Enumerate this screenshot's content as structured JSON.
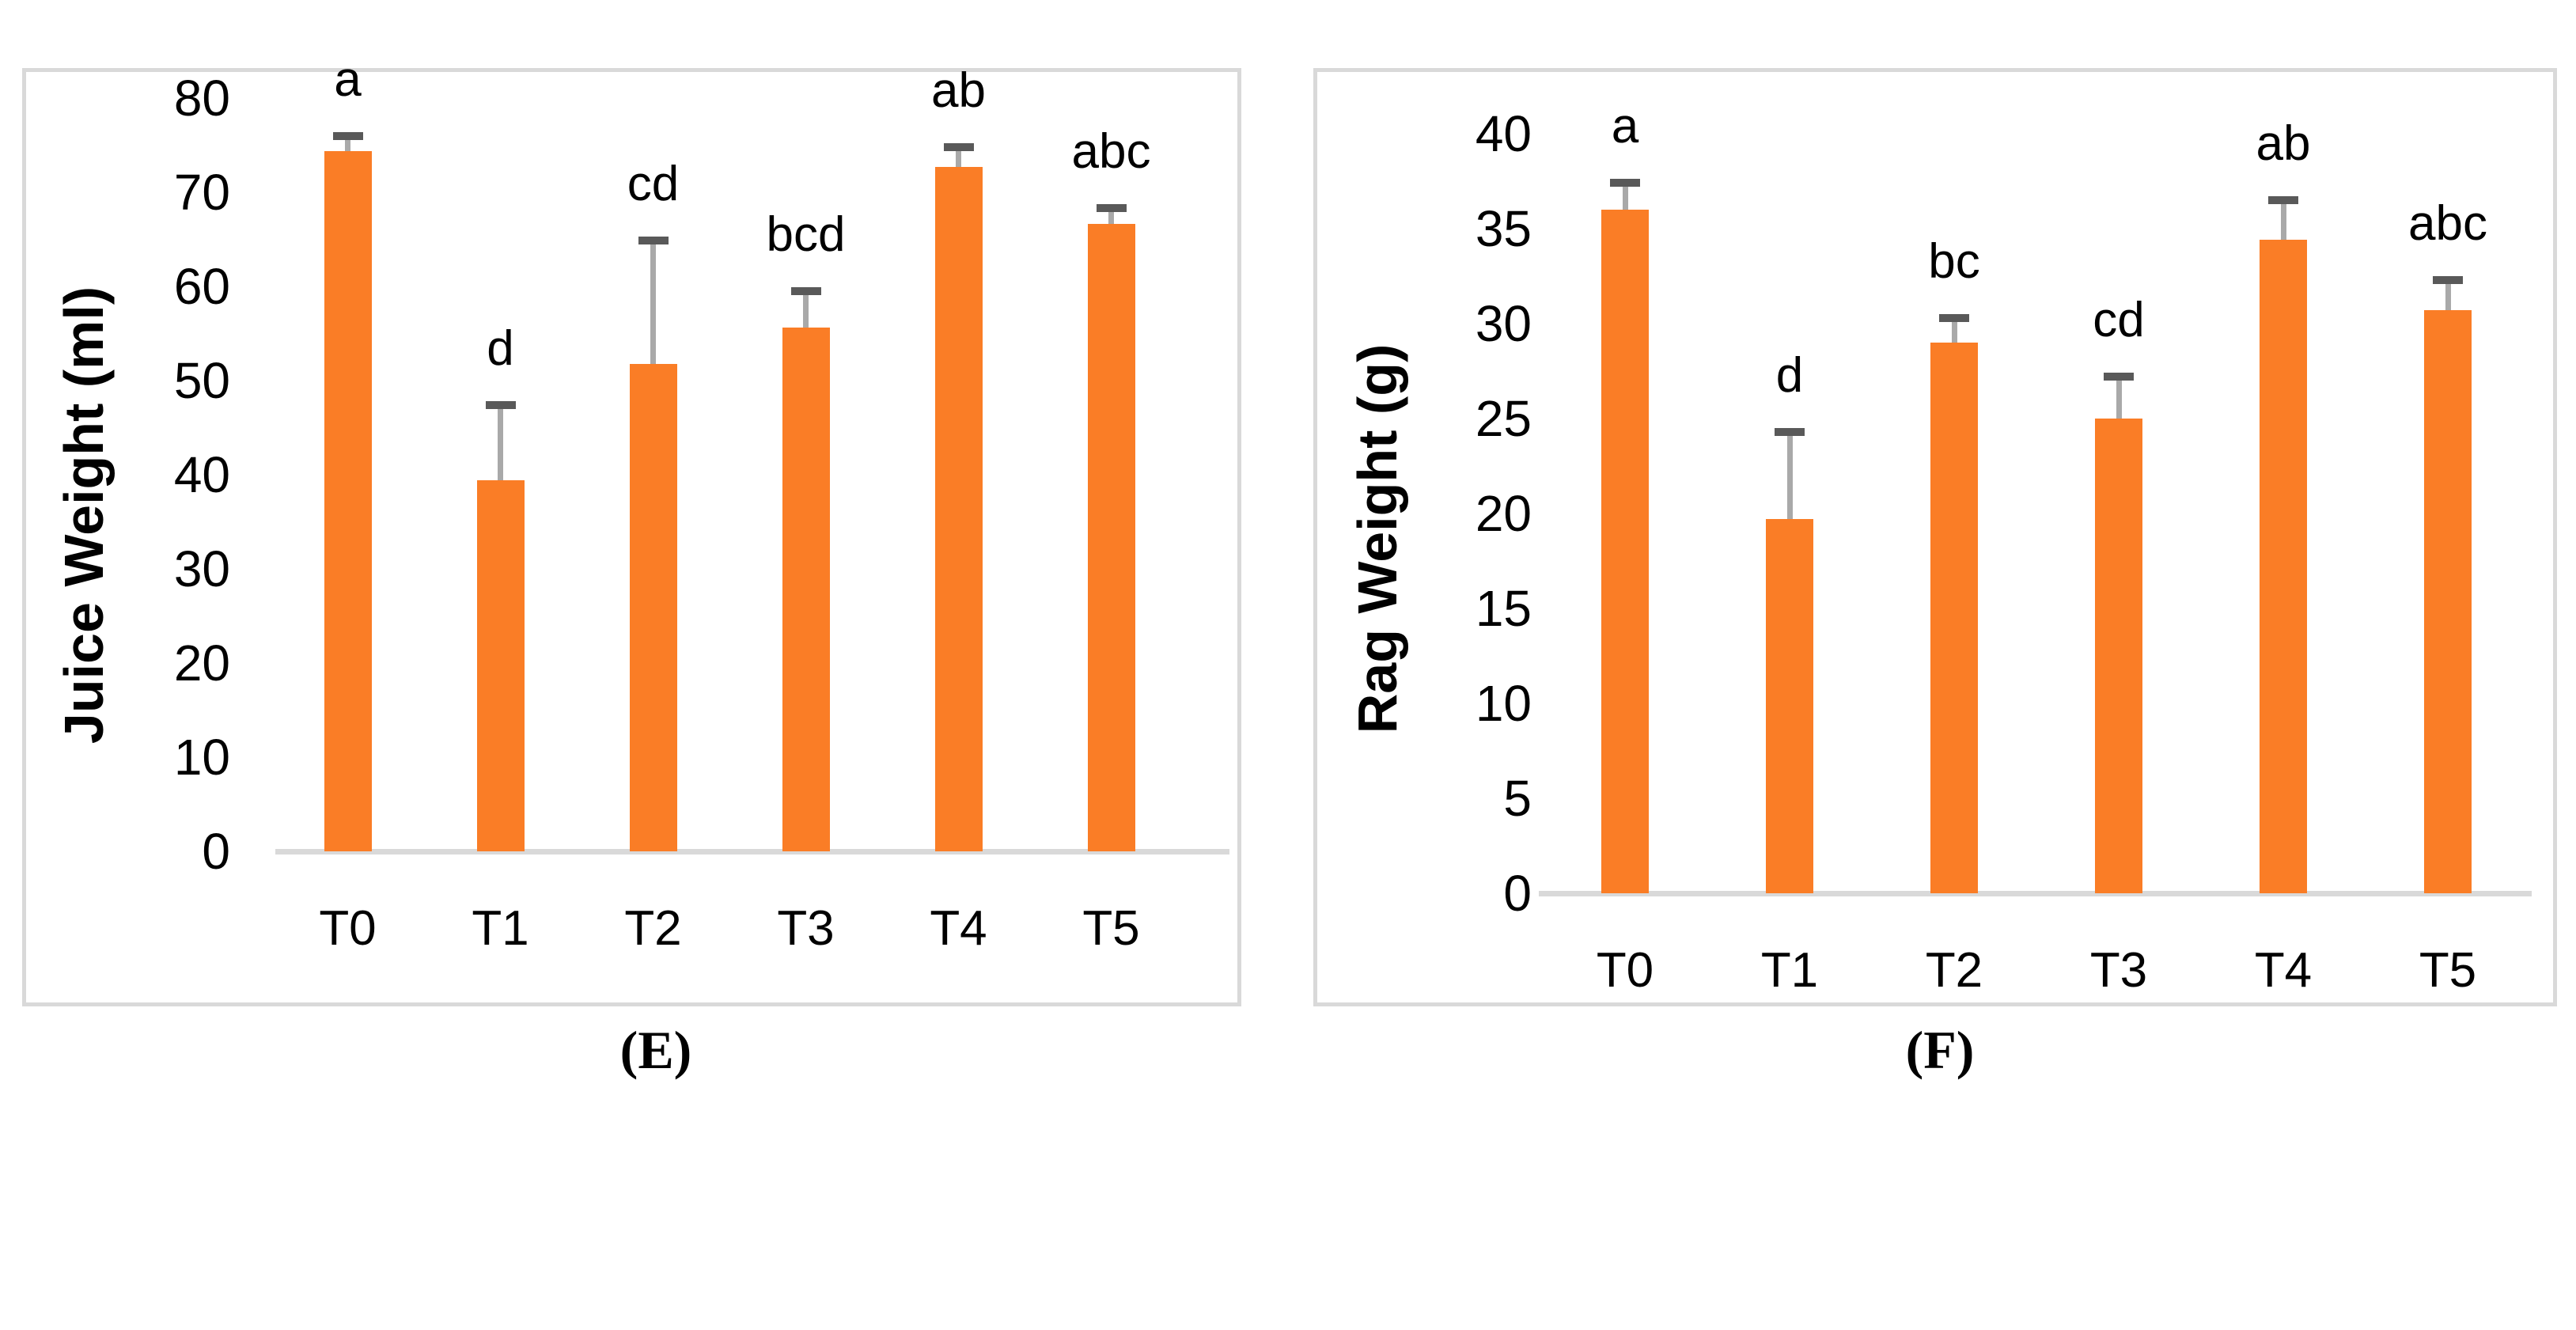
{
  "figure": {
    "caption_e": "(E)",
    "caption_f": "(F)"
  },
  "style": {
    "bar_color": "#FA7D26",
    "whisker_color": "#A9A9A9",
    "error_cap_color": "#595959",
    "axis_line_color": "#D9D9D9",
    "panel_border_color": "#D9D9D9",
    "text_color": "#000000"
  },
  "chart_data": [
    {
      "type": "bar",
      "panel": "E",
      "title": "",
      "xlabel": "",
      "ylabel": "Juice Weight (ml)",
      "categories": [
        "T0",
        "T1",
        "T2",
        "T3",
        "T4",
        "T5"
      ],
      "values": [
        74.4,
        39.4,
        51.8,
        55.6,
        72.7,
        66.6
      ],
      "error_plus": [
        1.6,
        8.0,
        13.1,
        3.9,
        2.1,
        1.7
      ],
      "sig_letters": [
        "a",
        "d",
        "cd",
        "bcd",
        "ab",
        "abc"
      ],
      "ylim": [
        0,
        80
      ],
      "ytick_step": 10,
      "ytick_labels": [
        "0",
        "10",
        "20",
        "30",
        "40",
        "50",
        "60",
        "70",
        "80"
      ],
      "grid": "off",
      "legend": "none",
      "caption": "(E)"
    },
    {
      "type": "bar",
      "panel": "F",
      "title": "",
      "xlabel": "",
      "ylabel": "Rag Weight (g)",
      "categories": [
        "T0",
        "T1",
        "T2",
        "T3",
        "T4",
        "T5"
      ],
      "values": [
        36.0,
        19.7,
        29.0,
        25.0,
        34.4,
        30.7
      ],
      "error_plus": [
        1.4,
        4.6,
        1.3,
        2.2,
        2.1,
        1.6
      ],
      "sig_letters": [
        "a",
        "d",
        "bc",
        "cd",
        "ab",
        "abc"
      ],
      "ylim": [
        0,
        40
      ],
      "ytick_step": 5,
      "ytick_labels": [
        "0",
        "5",
        "10",
        "15",
        "20",
        "25",
        "30",
        "35",
        "40"
      ],
      "grid": "off",
      "legend": "none",
      "caption": "(F)"
    }
  ]
}
